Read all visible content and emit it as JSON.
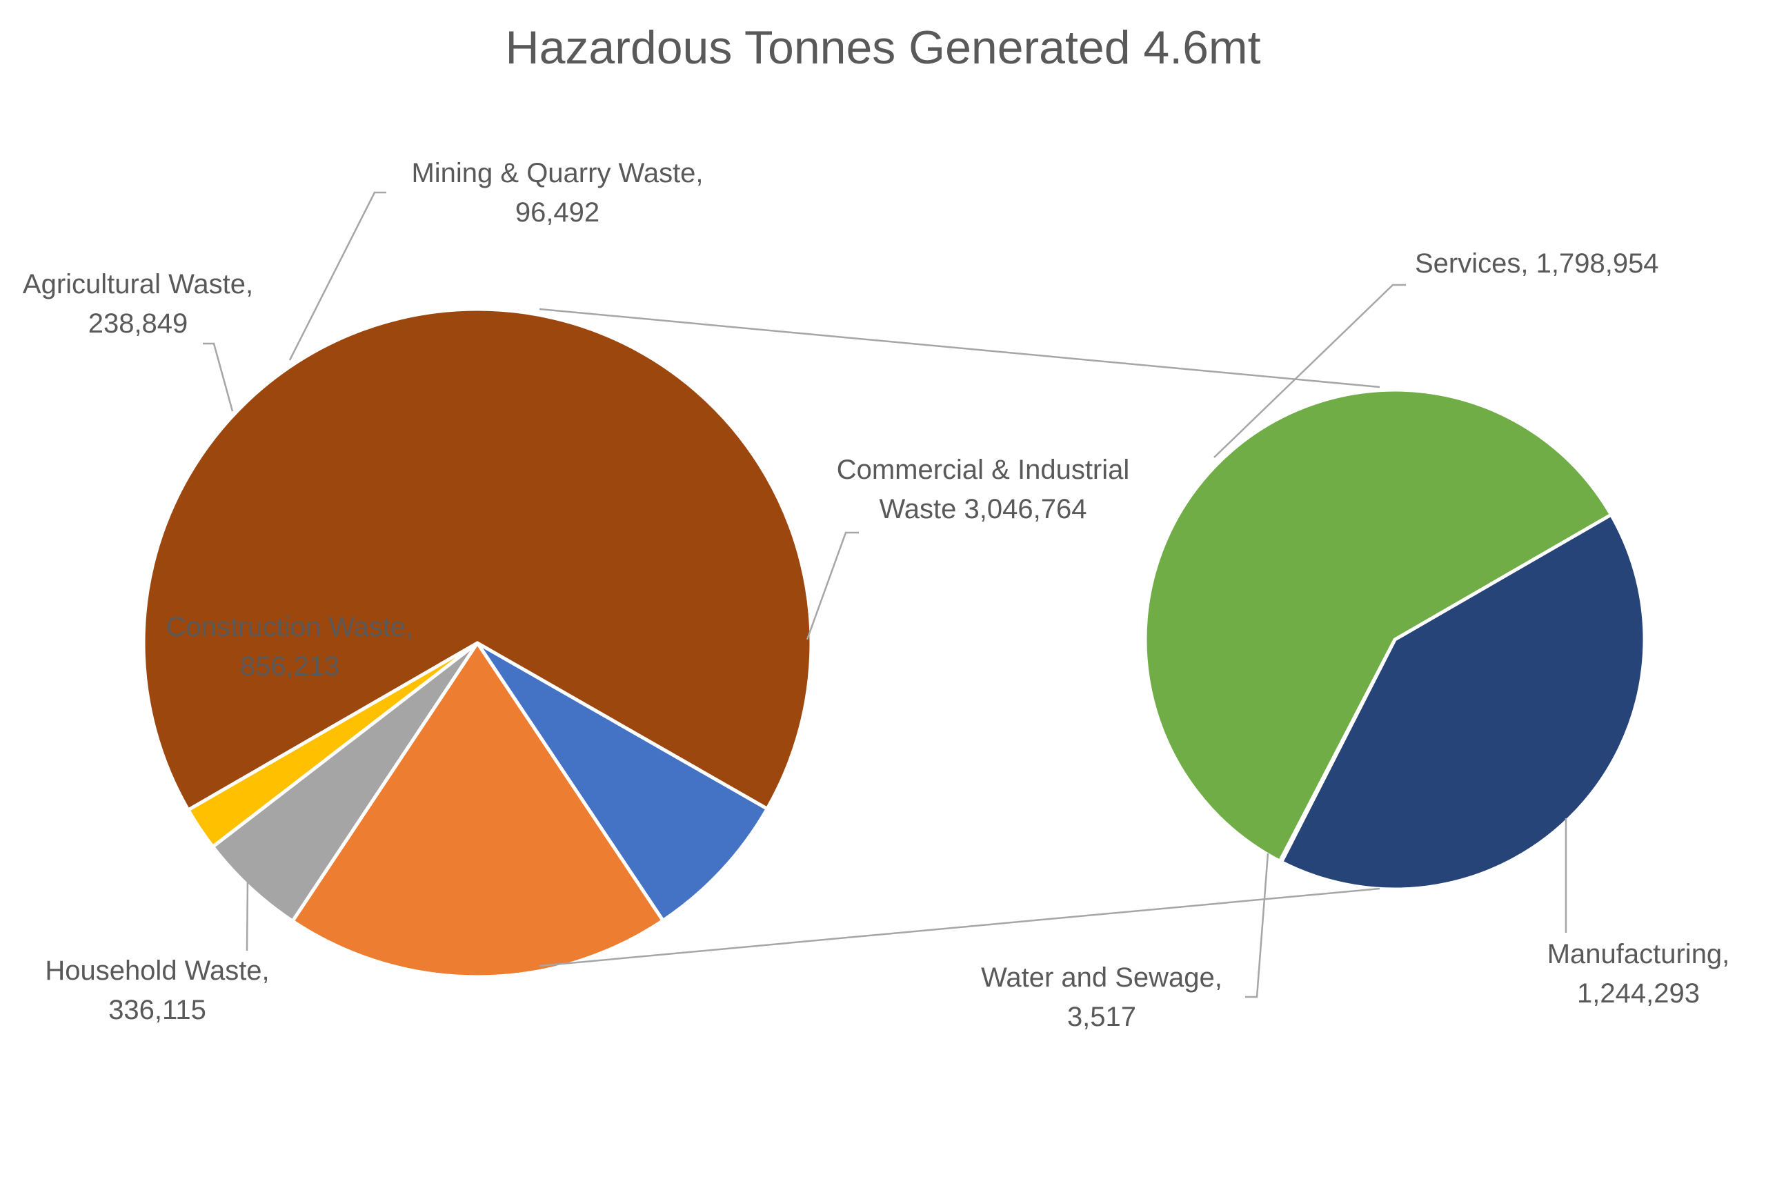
{
  "chart_data": {
    "type": "pie",
    "subtype": "pie-of-pie",
    "title": "Hazardous Tonnes Generated 4.6mt",
    "main_pie": {
      "slices": [
        {
          "id": "commercial",
          "label_lines": [
            "Commercial & Industrial",
            "Waste  3,046,764"
          ],
          "value": 3046764,
          "color": "#9C470E"
        },
        {
          "id": "household",
          "label_lines": [
            "Household Waste,",
            "336,115"
          ],
          "value": 336115,
          "color": "#4472C4"
        },
        {
          "id": "construction",
          "label_lines": [
            "Construction Waste,",
            "856,213"
          ],
          "value": 856213,
          "color": "#ED7D31"
        },
        {
          "id": "agricultural",
          "label_lines": [
            "Agricultural Waste,",
            "238,849"
          ],
          "value": 238849,
          "color": "#A5A5A5"
        },
        {
          "id": "mining",
          "label_lines": [
            "Mining & Quarry Waste,",
            "96,492"
          ],
          "value": 96492,
          "color": "#FFC000"
        }
      ]
    },
    "secondary_pie": {
      "breakdown_of": "commercial",
      "slices": [
        {
          "id": "manufacturing",
          "label_lines": [
            "Manufacturing,",
            "1,244,293"
          ],
          "value": 1244293,
          "color": "#264478"
        },
        {
          "id": "water",
          "label_lines": [
            "Water and Sewage,",
            "3,517"
          ],
          "value": 3517,
          "color": "#4472C4"
        },
        {
          "id": "services",
          "label_lines": [
            "Services, 1,798,954"
          ],
          "value": 1798954,
          "color": "#70AD47"
        }
      ]
    },
    "label_color": "#595959",
    "leader_line_color": "#A6A6A6"
  }
}
